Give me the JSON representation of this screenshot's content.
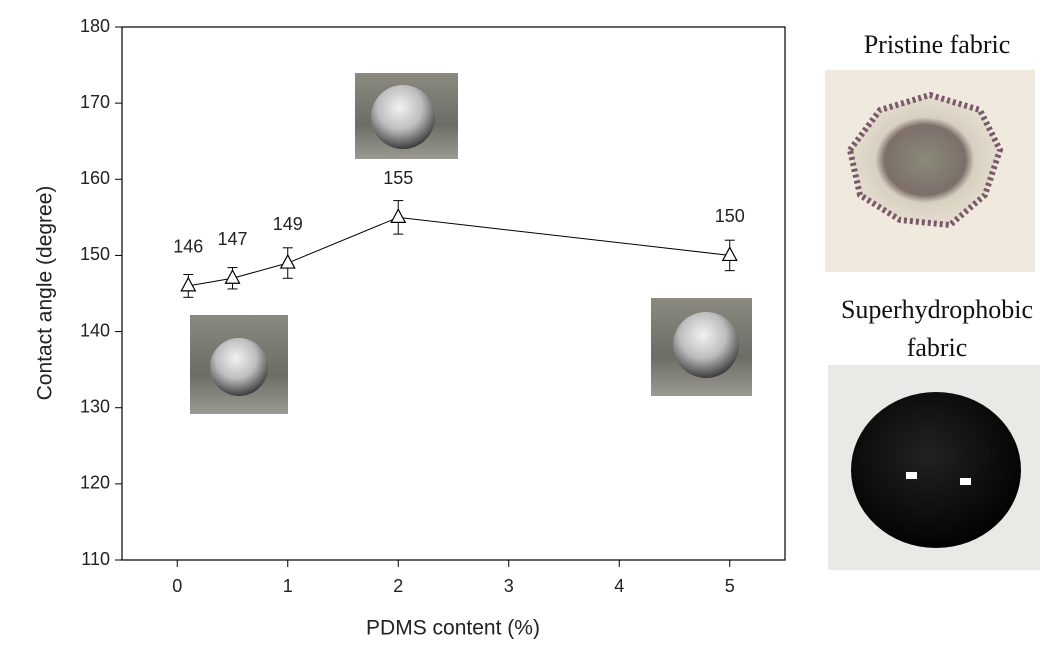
{
  "chart_data": {
    "type": "line",
    "x_label": "PDMS content (%)",
    "y_label": "Contact angle (degree)",
    "series": [
      {
        "color": "#000000",
        "x": [
          0.1,
          0.5,
          1,
          2,
          5
        ],
        "values": [
          146,
          147,
          149,
          155,
          150
        ],
        "errors": [
          1.5,
          1.4,
          2,
          2.2,
          2
        ]
      }
    ],
    "xlim": [
      -0.5,
      5.5
    ],
    "xticks": [
      0,
      1,
      2,
      3,
      4,
      5
    ],
    "ylim": [
      110,
      180
    ],
    "yticks": [
      110,
      120,
      130,
      140,
      150,
      160,
      170,
      180
    ]
  },
  "captions": [
    "Pristine fabric",
    "Superhydrophobic fabric"
  ]
}
